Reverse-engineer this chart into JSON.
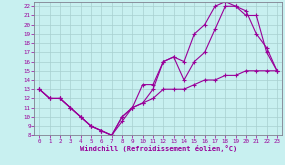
{
  "xlabel": "Windchill (Refroidissement éolien,°C)",
  "bg_color": "#c8f0f0",
  "grid_color": "#a8d0d0",
  "line_color": "#990099",
  "xlim": [
    -0.5,
    23.5
  ],
  "ylim": [
    8,
    22.5
  ],
  "xticks": [
    0,
    1,
    2,
    3,
    4,
    5,
    6,
    7,
    8,
    9,
    10,
    11,
    12,
    13,
    14,
    15,
    16,
    17,
    18,
    19,
    20,
    21,
    22,
    23
  ],
  "yticks": [
    8,
    9,
    10,
    11,
    12,
    13,
    14,
    15,
    16,
    17,
    18,
    19,
    20,
    21,
    22
  ],
  "line1_x": [
    0,
    1,
    2,
    3,
    4,
    5,
    6,
    7,
    8,
    9,
    10,
    11,
    12,
    13,
    14,
    15,
    16,
    17,
    18,
    19,
    20,
    21,
    22,
    23
  ],
  "line1_y": [
    13,
    12,
    12,
    11,
    10,
    9,
    8.5,
    8,
    9.5,
    11,
    11.5,
    13,
    16,
    16.5,
    14,
    16,
    17,
    19.5,
    22,
    22,
    21,
    21,
    17,
    15
  ],
  "line2_x": [
    0,
    1,
    2,
    3,
    4,
    5,
    6,
    7,
    8,
    9,
    10,
    11,
    12,
    13,
    14,
    15,
    16,
    17,
    18,
    19,
    20,
    21,
    22,
    23
  ],
  "line2_y": [
    13,
    12,
    12,
    11,
    10,
    9,
    8.5,
    8,
    10,
    11,
    13.5,
    13.5,
    16,
    16.5,
    16,
    19,
    20,
    22,
    22.5,
    22,
    21.5,
    19,
    17.5,
    15
  ],
  "line3_x": [
    0,
    1,
    2,
    3,
    4,
    5,
    6,
    7,
    8,
    9,
    10,
    11,
    12,
    13,
    14,
    15,
    16,
    17,
    18,
    19,
    20,
    21,
    22,
    23
  ],
  "line3_y": [
    13,
    12,
    12,
    11,
    10,
    9,
    8.5,
    8,
    10,
    11,
    11.5,
    12,
    13,
    13,
    13,
    13.5,
    14,
    14,
    14.5,
    14.5,
    15,
    15,
    15,
    15
  ]
}
